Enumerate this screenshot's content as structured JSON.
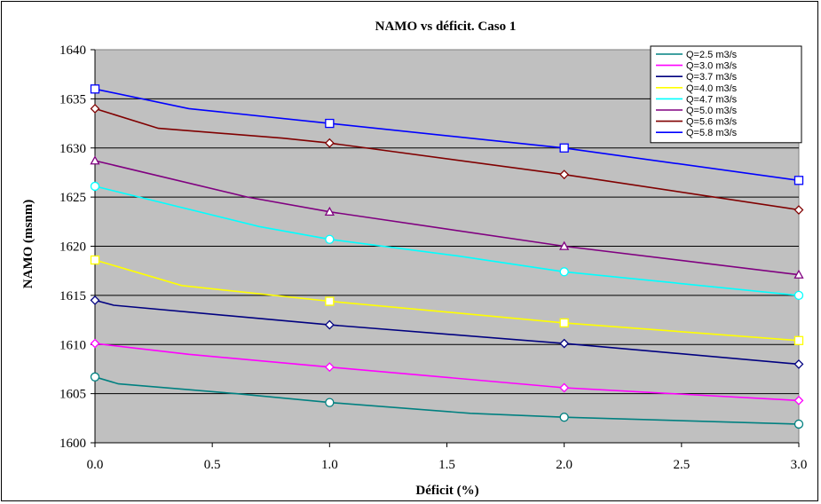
{
  "chart_data": {
    "type": "line",
    "title": "NAMO vs déficit.  Caso 1",
    "xlabel": "Déficit (%)",
    "ylabel": "NAMO (msnm)",
    "xlim": [
      0,
      3
    ],
    "ylim": [
      1600,
      1640
    ],
    "x_ticks": [
      "0.0",
      "0.5",
      "1.0",
      "1.5",
      "2.0",
      "2.5",
      "3.0"
    ],
    "y_ticks": [
      "1600",
      "1605",
      "1610",
      "1615",
      "1620",
      "1625",
      "1630",
      "1635",
      "1640"
    ],
    "grid": "horizontal",
    "plot_background": "#c0c0c0",
    "legend_position": "top-right",
    "series": [
      {
        "name": "Q=2.5 m3/s",
        "color": "#008080",
        "marker": "circle",
        "points": [
          [
            0,
            1606.7
          ],
          [
            0.1,
            1606.0
          ],
          [
            0.6,
            1605.0
          ],
          [
            1.0,
            1604.1
          ],
          [
            1.6,
            1603.0
          ],
          [
            2.0,
            1602.6
          ],
          [
            3.0,
            1601.9
          ]
        ],
        "marker_x": [
          0,
          1,
          2,
          3
        ]
      },
      {
        "name": "Q=3.0 m3/s",
        "color": "#ff00ff",
        "marker": "diamond",
        "points": [
          [
            0,
            1610.1
          ],
          [
            0.4,
            1609.0
          ],
          [
            1.0,
            1607.7
          ],
          [
            2.0,
            1605.6
          ],
          [
            3.0,
            1604.3
          ]
        ],
        "marker_x": [
          0,
          1,
          2,
          3
        ]
      },
      {
        "name": "Q=3.7  m3/s",
        "color": "#000080",
        "marker": "diamond",
        "points": [
          [
            0,
            1614.5
          ],
          [
            0.08,
            1614.0
          ],
          [
            1.0,
            1612.0
          ],
          [
            2.0,
            1610.1
          ],
          [
            3.0,
            1608.0
          ]
        ],
        "marker_x": [
          0,
          1,
          2,
          3
        ]
      },
      {
        "name": "Q=4.0  m3/s",
        "color": "#ffff00",
        "marker": "square",
        "points": [
          [
            0,
            1618.6
          ],
          [
            0.37,
            1616.0
          ],
          [
            1.0,
            1614.4
          ],
          [
            2.0,
            1612.2
          ],
          [
            3.0,
            1610.4
          ]
        ],
        "marker_x": [
          0,
          1,
          2,
          3
        ]
      },
      {
        "name": "Q=4.7 m3/s",
        "color": "#00ffff",
        "marker": "circle",
        "points": [
          [
            0,
            1626.1
          ],
          [
            0.7,
            1622.0
          ],
          [
            1.0,
            1620.7
          ],
          [
            1.55,
            1619.0
          ],
          [
            2.0,
            1617.4
          ],
          [
            3.0,
            1615.0
          ]
        ],
        "marker_x": [
          0,
          1,
          2,
          3
        ]
      },
      {
        "name": "Q=5.0  m3/s",
        "color": "#800080",
        "marker": "triangle",
        "points": [
          [
            0,
            1628.7
          ],
          [
            0.65,
            1625.0
          ],
          [
            1.0,
            1623.5
          ],
          [
            2.0,
            1620.0
          ],
          [
            3.0,
            1617.1
          ]
        ],
        "marker_x": [
          0,
          1,
          2,
          3
        ]
      },
      {
        "name": "Q=5.6  m3/s",
        "color": "#800000",
        "marker": "diamond",
        "points": [
          [
            0,
            1634.0
          ],
          [
            0.27,
            1632.0
          ],
          [
            0.8,
            1631.0
          ],
          [
            1.0,
            1630.5
          ],
          [
            2.0,
            1627.3
          ],
          [
            3.0,
            1623.7
          ]
        ],
        "marker_x": [
          0,
          1,
          2,
          3
        ]
      },
      {
        "name": "Q=5.8  m3/s",
        "color": "#0000ff",
        "marker": "square",
        "points": [
          [
            0,
            1636.0
          ],
          [
            0.4,
            1634.0
          ],
          [
            1.0,
            1632.5
          ],
          [
            2.0,
            1630.0
          ],
          [
            3.0,
            1626.7
          ]
        ],
        "marker_x": [
          0,
          1,
          2,
          3
        ]
      }
    ]
  }
}
